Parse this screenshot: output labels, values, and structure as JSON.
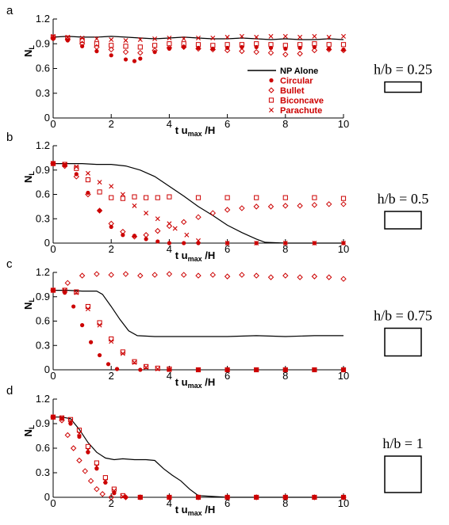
{
  "figure": {
    "x_axis_label_prefix": "t u",
    "x_axis_label_sub": "max",
    "x_axis_label_suffix": " /H",
    "y_axis_label_main": "N",
    "y_axis_label_sub": "L",
    "legend": {
      "np_alone": "NP Alone",
      "circular": "Circular",
      "bullet": "Bullet",
      "biconcave": "Biconcave",
      "parachute": "Parachute"
    },
    "colors": {
      "np_alone": "#000000",
      "particles": "#cc0000"
    }
  },
  "chart_data": [
    {
      "type": "scatter",
      "panel_label": "a",
      "aspect_label": "h/b = 0.25",
      "aspect_ratio": 0.25,
      "xlim": [
        0,
        10
      ],
      "ylim": [
        0,
        1.2
      ],
      "xticks": [
        "0",
        "2",
        "4",
        "6",
        "8",
        "10"
      ],
      "yticks": [
        "0",
        "0.3",
        "0.6",
        "0.9",
        "1.2"
      ],
      "series": [
        {
          "name": "NP Alone",
          "marker": "line",
          "x": [
            0,
            0.5,
            1,
            1.5,
            2,
            2.5,
            3,
            3.5,
            4,
            4.5,
            5,
            5.5,
            6,
            6.5,
            7,
            7.5,
            8,
            8.5,
            9,
            9.5,
            10
          ],
          "y": [
            0.98,
            0.99,
            0.98,
            0.98,
            0.99,
            0.98,
            0.97,
            0.96,
            0.97,
            0.98,
            0.97,
            0.96,
            0.96,
            0.97,
            0.96,
            0.95,
            0.96,
            0.95,
            0.95,
            0.96,
            0.95
          ]
        },
        {
          "name": "Circular",
          "marker": "filled-circle",
          "x": [
            0,
            0.5,
            1,
            1.5,
            2,
            2.5,
            2.8,
            3,
            3.5,
            4,
            4.5,
            5,
            5.5,
            6,
            6.5,
            7,
            7.5,
            8,
            8.5,
            9,
            9.5,
            10
          ],
          "y": [
            0.96,
            0.94,
            0.87,
            0.81,
            0.76,
            0.71,
            0.69,
            0.72,
            0.8,
            0.84,
            0.86,
            0.85,
            0.84,
            0.85,
            0.86,
            0.86,
            0.85,
            0.84,
            0.85,
            0.86,
            0.84,
            0.83
          ]
        },
        {
          "name": "Bullet",
          "marker": "open-diamond",
          "x": [
            0,
            0.5,
            1,
            1.5,
            2,
            2.5,
            3,
            3.5,
            4,
            4.5,
            5,
            5.5,
            6,
            6.5,
            7,
            7.5,
            8,
            8.5,
            9,
            9.5,
            10
          ],
          "y": [
            0.97,
            0.95,
            0.9,
            0.86,
            0.83,
            0.8,
            0.79,
            0.82,
            0.85,
            0.86,
            0.84,
            0.83,
            0.82,
            0.81,
            0.8,
            0.79,
            0.77,
            0.78,
            0.82,
            0.83,
            0.82
          ]
        },
        {
          "name": "Biconcave",
          "marker": "open-square",
          "x": [
            0,
            0.5,
            1,
            1.5,
            2,
            2.5,
            3,
            3.5,
            4,
            4.5,
            5,
            5.5,
            6,
            6.5,
            7,
            7.5,
            8,
            8.5,
            9,
            9.5,
            10
          ],
          "y": [
            0.98,
            0.97,
            0.94,
            0.9,
            0.88,
            0.87,
            0.86,
            0.88,
            0.9,
            0.9,
            0.89,
            0.88,
            0.89,
            0.89,
            0.9,
            0.89,
            0.88,
            0.89,
            0.9,
            0.89,
            0.89
          ]
        },
        {
          "name": "Parachute",
          "marker": "x",
          "x": [
            0,
            0.5,
            1,
            1.5,
            2,
            2.5,
            3,
            3.5,
            4,
            4.5,
            5,
            5.5,
            6,
            6.5,
            7,
            7.5,
            8,
            8.5,
            9,
            9.5,
            10
          ],
          "y": [
            0.99,
            0.98,
            0.97,
            0.96,
            0.95,
            0.94,
            0.95,
            0.96,
            0.97,
            0.96,
            0.97,
            0.97,
            0.98,
            0.99,
            0.98,
            0.99,
            0.99,
            0.98,
            0.99,
            0.98,
            0.99
          ]
        }
      ]
    },
    {
      "type": "scatter",
      "panel_label": "b",
      "aspect_label": "h/b = 0.5",
      "aspect_ratio": 0.5,
      "xlim": [
        0,
        10
      ],
      "ylim": [
        0,
        1.2
      ],
      "xticks": [
        "0",
        "2",
        "4",
        "6",
        "8",
        "10"
      ],
      "yticks": [
        "0",
        "0.3",
        "0.6",
        "0.9",
        "1.2"
      ],
      "series": [
        {
          "name": "NP Alone",
          "marker": "line",
          "x": [
            0,
            0.5,
            1,
            1.5,
            2,
            2.5,
            3,
            3.5,
            4,
            4.5,
            5,
            5.5,
            6,
            6.5,
            7,
            7.3,
            8,
            9,
            10
          ],
          "y": [
            0.98,
            0.98,
            0.98,
            0.97,
            0.97,
            0.95,
            0.9,
            0.82,
            0.7,
            0.58,
            0.45,
            0.34,
            0.22,
            0.13,
            0.05,
            0.01,
            0,
            0,
            0
          ]
        },
        {
          "name": "Circular",
          "marker": "filled-circle",
          "x": [
            0,
            0.4,
            0.8,
            1.2,
            1.6,
            2,
            2.4,
            2.8,
            3.2,
            3.6,
            4,
            4.5,
            5,
            6,
            7,
            8,
            9,
            10
          ],
          "y": [
            0.98,
            0.96,
            0.85,
            0.62,
            0.4,
            0.2,
            0.1,
            0.09,
            0.05,
            0.02,
            0,
            0,
            0,
            0,
            0,
            0,
            0,
            0
          ]
        },
        {
          "name": "Bullet",
          "marker": "open-diamond",
          "x": [
            0,
            0.4,
            0.8,
            1.2,
            1.6,
            2,
            2.4,
            2.8,
            3.2,
            3.6,
            4,
            4.5,
            5,
            5.5,
            6,
            6.5,
            7,
            7.5,
            8,
            8.5,
            9,
            9.5,
            10
          ],
          "y": [
            0.98,
            0.95,
            0.82,
            0.6,
            0.4,
            0.24,
            0.14,
            0.08,
            0.1,
            0.15,
            0.21,
            0.26,
            0.32,
            0.37,
            0.41,
            0.43,
            0.45,
            0.45,
            0.46,
            0.46,
            0.47,
            0.48,
            0.48
          ]
        },
        {
          "name": "Biconcave",
          "marker": "open-square",
          "x": [
            0,
            0.4,
            0.8,
            1.2,
            1.6,
            2,
            2.4,
            2.8,
            3.2,
            3.6,
            4,
            5,
            6,
            7,
            8,
            9,
            10
          ],
          "y": [
            0.98,
            0.97,
            0.92,
            0.78,
            0.63,
            0.56,
            0.55,
            0.57,
            0.56,
            0.56,
            0.57,
            0.56,
            0.56,
            0.56,
            0.56,
            0.56,
            0.55
          ]
        },
        {
          "name": "Parachute",
          "marker": "x",
          "x": [
            0,
            0.4,
            0.8,
            1.2,
            1.6,
            2,
            2.4,
            2.8,
            3.2,
            3.6,
            4,
            4.2,
            4.6,
            5,
            6,
            7,
            8,
            9,
            10
          ],
          "y": [
            0.98,
            0.97,
            0.94,
            0.86,
            0.75,
            0.7,
            0.6,
            0.46,
            0.37,
            0.3,
            0.24,
            0.18,
            0.1,
            0.03,
            0,
            0,
            0,
            0,
            0
          ]
        }
      ]
    },
    {
      "type": "scatter",
      "panel_label": "c",
      "aspect_label": "h/b = 0.75",
      "aspect_ratio": 0.75,
      "xlim": [
        0,
        10
      ],
      "ylim": [
        0,
        1.2
      ],
      "xticks": [
        "0",
        "2",
        "4",
        "6",
        "8",
        "10"
      ],
      "yticks": [
        "0",
        "0.3",
        "0.6",
        "0.9",
        "1.2"
      ],
      "series": [
        {
          "name": "NP Alone",
          "marker": "line",
          "x": [
            0,
            0.5,
            1,
            1.5,
            1.7,
            2,
            2.3,
            2.6,
            2.9,
            3.5,
            4,
            5,
            6,
            7,
            8,
            9,
            10
          ],
          "y": [
            0.98,
            0.98,
            0.97,
            0.97,
            0.93,
            0.78,
            0.62,
            0.48,
            0.42,
            0.41,
            0.41,
            0.41,
            0.41,
            0.42,
            0.41,
            0.42,
            0.42
          ]
        },
        {
          "name": "Circular",
          "marker": "filled-circle",
          "x": [
            0,
            0.4,
            0.7,
            1,
            1.3,
            1.6,
            1.9,
            2.2,
            3,
            4,
            5,
            6,
            7,
            8,
            9,
            10
          ],
          "y": [
            0.98,
            0.95,
            0.78,
            0.55,
            0.34,
            0.18,
            0.07,
            0.01,
            0,
            0,
            0,
            0,
            0,
            0,
            0,
            0
          ]
        },
        {
          "name": "Bullet",
          "marker": "open-diamond",
          "x": [
            0,
            0.5,
            1,
            1.5,
            2,
            2.5,
            3,
            3.5,
            4,
            4.5,
            5,
            5.5,
            6,
            6.5,
            7,
            7.5,
            8,
            8.5,
            9,
            9.5,
            10
          ],
          "y": [
            0.98,
            1.07,
            1.16,
            1.18,
            1.17,
            1.18,
            1.16,
            1.17,
            1.18,
            1.17,
            1.16,
            1.17,
            1.15,
            1.17,
            1.16,
            1.14,
            1.16,
            1.14,
            1.15,
            1.14,
            1.12
          ]
        },
        {
          "name": "Biconcave",
          "marker": "open-square",
          "x": [
            0,
            0.4,
            0.8,
            1.2,
            1.6,
            2,
            2.4,
            2.8,
            3.2,
            3.6,
            4,
            5,
            6,
            7,
            8,
            9,
            10
          ],
          "y": [
            0.98,
            0.98,
            0.96,
            0.78,
            0.58,
            0.38,
            0.22,
            0.1,
            0.04,
            0.02,
            0.01,
            0,
            0,
            0,
            0,
            0,
            0
          ]
        },
        {
          "name": "Parachute",
          "marker": "x",
          "x": [
            0,
            0.4,
            0.8,
            1.2,
            1.6,
            2,
            2.4,
            2.8,
            3.2,
            3.6,
            4,
            5,
            6,
            7,
            8,
            9,
            10
          ],
          "y": [
            0.98,
            0.98,
            0.95,
            0.75,
            0.55,
            0.35,
            0.2,
            0.09,
            0.03,
            0.01,
            0,
            0,
            0,
            0,
            0,
            0,
            0
          ]
        }
      ]
    },
    {
      "type": "scatter",
      "panel_label": "d",
      "aspect_label": "h/b = 1",
      "aspect_ratio": 1.0,
      "xlim": [
        0,
        10
      ],
      "ylim": [
        0,
        1.2
      ],
      "xticks": [
        "0",
        "2",
        "4",
        "6",
        "8",
        "10"
      ],
      "yticks": [
        "0",
        "0.3",
        "0.6",
        "0.9",
        "1.2"
      ],
      "series": [
        {
          "name": "NP Alone",
          "marker": "line",
          "x": [
            0,
            0.3,
            0.6,
            0.9,
            1.2,
            1.5,
            1.8,
            2.1,
            2.4,
            2.8,
            3.2,
            3.5,
            3.8,
            4.1,
            4.4,
            4.7,
            5,
            6,
            7,
            8,
            9,
            10
          ],
          "y": [
            0.98,
            0.98,
            0.96,
            0.83,
            0.67,
            0.55,
            0.48,
            0.46,
            0.47,
            0.46,
            0.46,
            0.45,
            0.35,
            0.27,
            0.2,
            0.1,
            0.02,
            0,
            0,
            0,
            0,
            0
          ]
        },
        {
          "name": "Circular",
          "marker": "filled-circle",
          "x": [
            0,
            0.3,
            0.6,
            0.9,
            1.2,
            1.5,
            1.8,
            2.1,
            2.5,
            3,
            4,
            5,
            6,
            7,
            8,
            9,
            10
          ],
          "y": [
            0.98,
            0.96,
            0.9,
            0.74,
            0.55,
            0.35,
            0.18,
            0.05,
            0,
            0,
            0,
            0,
            0,
            0,
            0,
            0,
            0
          ]
        },
        {
          "name": "Bullet",
          "marker": "open-diamond",
          "x": [
            0,
            0.3,
            0.5,
            0.7,
            0.9,
            1.1,
            1.3,
            1.5,
            1.7,
            2,
            2.5,
            3,
            4,
            5,
            6,
            7,
            8,
            9,
            10
          ],
          "y": [
            0.98,
            0.94,
            0.76,
            0.6,
            0.45,
            0.32,
            0.2,
            0.1,
            0.04,
            0,
            0,
            0,
            0,
            0,
            0,
            0,
            0,
            0,
            0
          ]
        },
        {
          "name": "Biconcave",
          "marker": "open-square",
          "x": [
            0,
            0.3,
            0.6,
            0.9,
            1.2,
            1.5,
            1.8,
            2.1,
            2.4,
            3,
            4,
            5,
            6,
            7,
            8,
            9,
            10
          ],
          "y": [
            0.98,
            0.97,
            0.95,
            0.82,
            0.62,
            0.42,
            0.24,
            0.1,
            0.02,
            0,
            0,
            0,
            0,
            0,
            0,
            0,
            0
          ]
        },
        {
          "name": "Parachute",
          "marker": "x",
          "x": [
            0,
            0.3,
            0.6,
            0.9,
            1.2,
            1.5,
            1.8,
            2.1,
            2.4,
            3,
            4,
            5,
            6,
            7,
            8,
            9,
            10
          ],
          "y": [
            0.98,
            0.97,
            0.93,
            0.78,
            0.58,
            0.38,
            0.2,
            0.08,
            0.01,
            0,
            0,
            0,
            0,
            0,
            0,
            0,
            0
          ]
        }
      ]
    }
  ]
}
